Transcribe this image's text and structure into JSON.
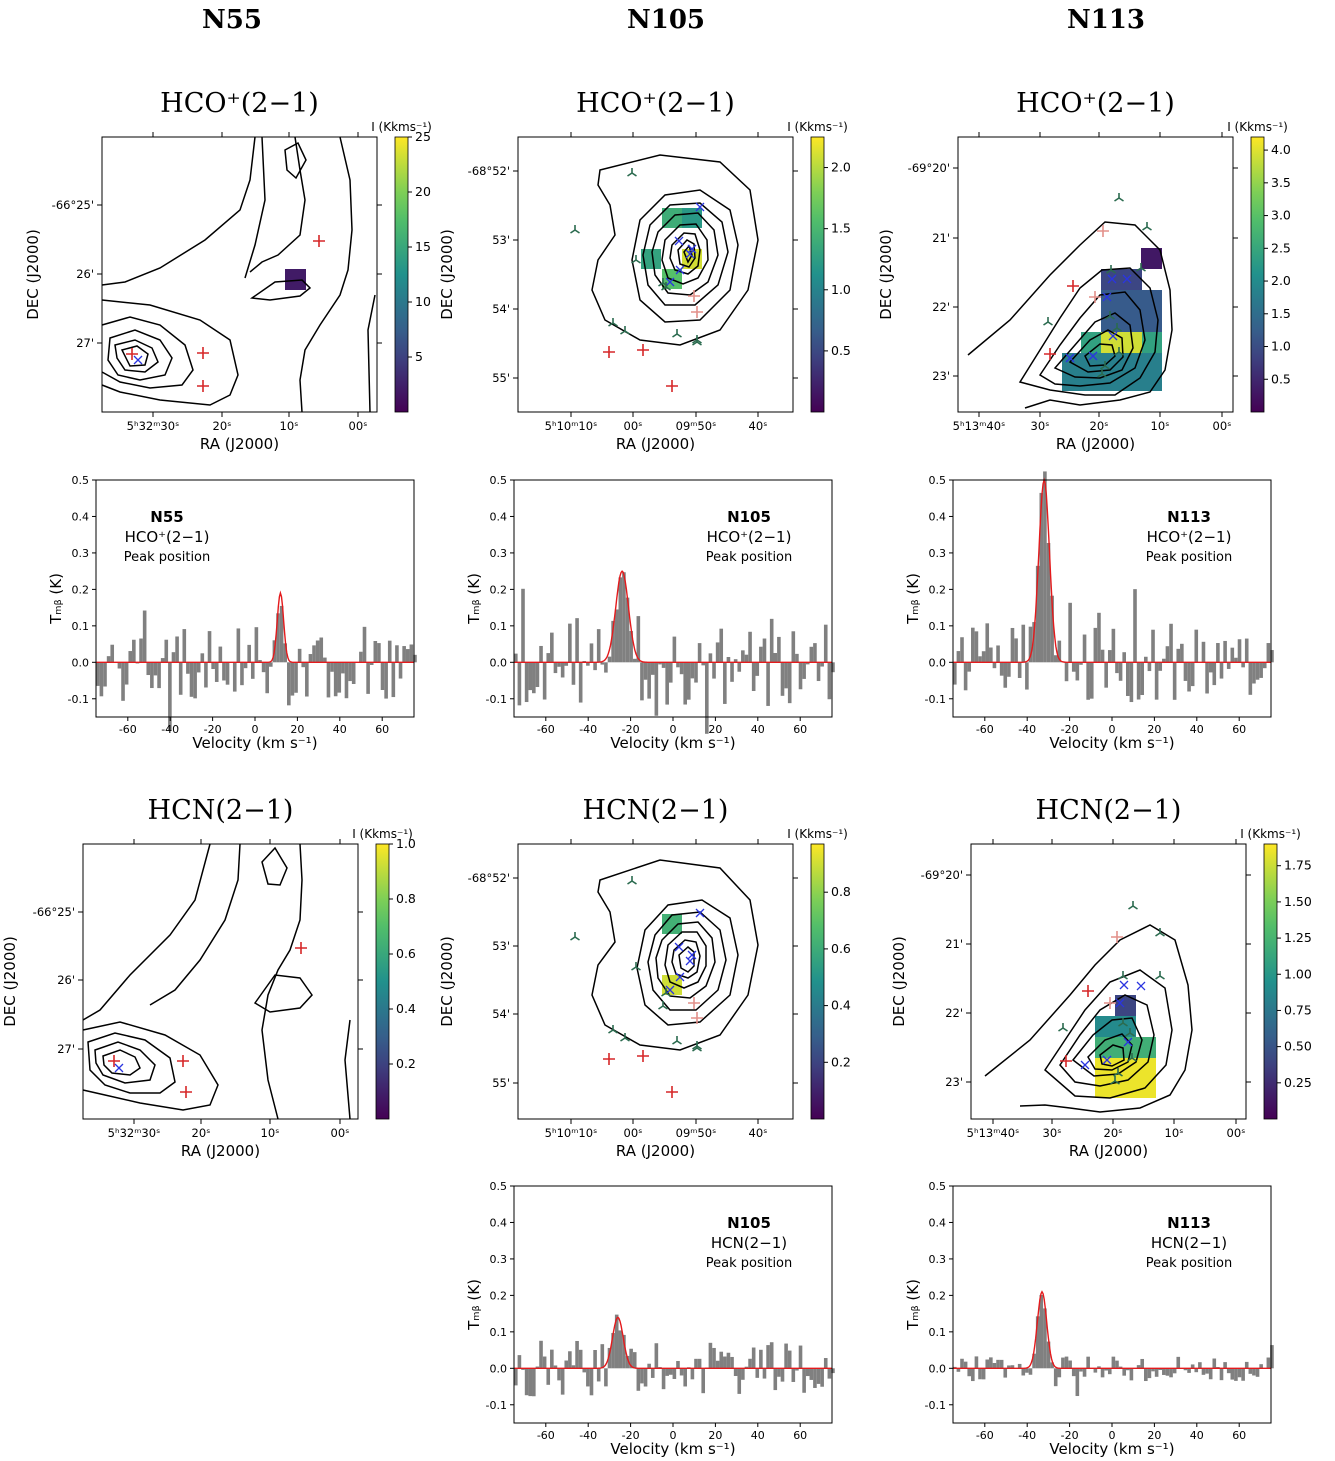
{
  "column_titles": [
    "N55",
    "N105",
    "N113"
  ],
  "chart_data": [
    {
      "id": "n55-hco-map",
      "type": "heatmap",
      "title": "HCO⁺(2−1)",
      "xlabel": "RA (J2000)",
      "ylabel": "DEC (J2000)",
      "xticks": [
        "5ʰ32ᵐ30ˢ",
        "20ˢ",
        "10ˢ",
        "00ˢ"
      ],
      "yticks": [
        "-66°25'",
        "26'",
        "27'"
      ],
      "colorbar": {
        "label": "I (Kkms⁻¹)",
        "ticks": [
          "5",
          "10",
          "15",
          "20",
          "25"
        ],
        "range": [
          0,
          25
        ]
      },
      "pixels": [
        {
          "ra": "5h32m10s",
          "dec": "-66°26'",
          "value": 2
        }
      ],
      "markers": [
        "red +",
        "blue x"
      ]
    },
    {
      "id": "n105-hco-map",
      "type": "heatmap",
      "title": "HCO⁺(2−1)",
      "xlabel": "RA (J2000)",
      "ylabel": "DEC (J2000)",
      "xticks": [
        "5ʰ10ᵐ10ˢ",
        "00ˢ",
        "09ᵐ50ˢ",
        "40ˢ"
      ],
      "yticks": [
        "-68°52'",
        "53'",
        "54'",
        "55'"
      ],
      "colorbar": {
        "label": "I (Kkms⁻¹)",
        "ticks": [
          "0.5",
          "1.0",
          "1.5",
          "2.0"
        ],
        "range": [
          0,
          2.25
        ]
      },
      "pixels": [
        {
          "value": 1.4
        },
        {
          "value": 1.2
        },
        {
          "value": 1.3
        },
        {
          "value": 1.6
        },
        {
          "value": 2.1
        }
      ],
      "markers": [
        "red +",
        "pink +",
        "blue x",
        "green tri"
      ]
    },
    {
      "id": "n113-hco-map",
      "type": "heatmap",
      "title": "HCO⁺(2−1)",
      "xlabel": "RA (J2000)",
      "ylabel": "DEC (J2000)",
      "xticks": [
        "5ʰ13ᵐ40ˢ",
        "30ˢ",
        "20ˢ",
        "10ˢ",
        "00ˢ"
      ],
      "yticks": [
        "-69°20'",
        "21'",
        "22'",
        "23'"
      ],
      "colorbar": {
        "label": "I (Kkms⁻¹)",
        "ticks": [
          "0.5",
          "1.0",
          "1.5",
          "2.0",
          "2.5",
          "3.0",
          "3.5",
          "4.0"
        ],
        "range": [
          0,
          4.2
        ]
      },
      "pixels": [
        {
          "value": 0.3
        },
        {
          "value": 0.9
        },
        {
          "value": 1.2
        },
        {
          "value": 2.4
        },
        {
          "value": 3.9
        },
        {
          "value": 1.8
        }
      ],
      "markers": [
        "red +",
        "pink +",
        "blue x",
        "green tri"
      ]
    },
    {
      "id": "n55-hco-spec",
      "type": "bar",
      "annotation": [
        "N55",
        "HCO⁺(2−1)",
        "Peak position"
      ],
      "xlabel": "Velocity (km s⁻¹)",
      "ylabel": "Tₘᵦ (K)",
      "xlim": [
        -75,
        75
      ],
      "ylim": [
        -0.15,
        0.5
      ],
      "xticks": [
        -60,
        -40,
        -20,
        0,
        20,
        40,
        60
      ],
      "yticks": [
        -0.1,
        0.0,
        0.1,
        0.2,
        0.3,
        0.4,
        0.5
      ],
      "fit": {
        "amplitude": 0.19,
        "center": 12,
        "sigma": 1.5
      }
    },
    {
      "id": "n105-hco-spec",
      "type": "bar",
      "annotation": [
        "N105",
        "HCO⁺(2−1)",
        "Peak position"
      ],
      "xlabel": "Velocity (km s⁻¹)",
      "ylabel": "Tₘᵦ (K)",
      "xlim": [
        -75,
        75
      ],
      "ylim": [
        -0.15,
        0.5
      ],
      "xticks": [
        -60,
        -40,
        -20,
        0,
        20,
        40,
        60
      ],
      "yticks": [
        -0.1,
        0.0,
        0.1,
        0.2,
        0.3,
        0.4,
        0.5
      ],
      "fit": {
        "amplitude": 0.25,
        "center": -24,
        "sigma": 3
      }
    },
    {
      "id": "n113-hco-spec",
      "type": "bar",
      "annotation": [
        "N113",
        "HCO⁺(2−1)",
        "Peak position"
      ],
      "xlabel": "Velocity (km s⁻¹)",
      "ylabel": "Tₘᵦ (K)",
      "xlim": [
        -75,
        75
      ],
      "ylim": [
        -0.15,
        0.5
      ],
      "xticks": [
        -60,
        -40,
        -20,
        0,
        20,
        40,
        60
      ],
      "yticks": [
        -0.1,
        0.0,
        0.1,
        0.2,
        0.3,
        0.4,
        0.5
      ],
      "fit": {
        "amplitude": 0.5,
        "center": -32,
        "sigma": 2.5
      }
    },
    {
      "id": "n55-hcn-map",
      "type": "heatmap",
      "title": "HCN(2−1)",
      "xlabel": "RA (J2000)",
      "ylabel": "DEC (J2000)",
      "xticks": [
        "5ʰ32ᵐ30ˢ",
        "20ˢ",
        "10ˢ",
        "00ˢ"
      ],
      "yticks": [
        "-66°25'",
        "26'",
        "27'"
      ],
      "colorbar": {
        "label": "I (Kkms⁻¹)",
        "ticks": [
          "0.2",
          "0.4",
          "0.6",
          "0.8",
          "1.0"
        ],
        "range": [
          0,
          1.0
        ]
      },
      "pixels": [],
      "markers": [
        "red +",
        "blue x"
      ]
    },
    {
      "id": "n105-hcn-map",
      "type": "heatmap",
      "title": "HCN(2−1)",
      "xlabel": "RA (J2000)",
      "ylabel": "DEC (J2000)",
      "xticks": [
        "5ʰ10ᵐ10ˢ",
        "00ˢ",
        "09ᵐ50ˢ",
        "40ˢ"
      ],
      "yticks": [
        "-68°52'",
        "53'",
        "54'",
        "55'"
      ],
      "colorbar": {
        "label": "I (Kkms⁻¹)",
        "ticks": [
          "0.2",
          "0.4",
          "0.6",
          "0.8"
        ],
        "range": [
          0,
          0.97
        ]
      },
      "pixels": [
        {
          "value": 0.62
        },
        {
          "value": 0.9
        }
      ],
      "markers": [
        "red +",
        "pink +",
        "blue x",
        "green tri"
      ]
    },
    {
      "id": "n113-hcn-map",
      "type": "heatmap",
      "title": "HCN(2−1)",
      "xlabel": "RA (J2000)",
      "ylabel": "DEC (J2000)",
      "xticks": [
        "5ʰ13ᵐ40ˢ",
        "30ˢ",
        "20ˢ",
        "10ˢ",
        "00ˢ"
      ],
      "yticks": [
        "-69°20'",
        "21'",
        "22'",
        "23'"
      ],
      "colorbar": {
        "label": "I (Kkms⁻¹)",
        "ticks": [
          "0.25",
          "0.50",
          "0.75",
          "1.00",
          "1.25",
          "1.50",
          "1.75"
        ],
        "range": [
          0,
          1.9
        ]
      },
      "pixels": [
        {
          "value": 0.4
        },
        {
          "value": 0.9
        },
        {
          "value": 1.2
        },
        {
          "value": 1.6
        },
        {
          "value": 1.85
        }
      ],
      "markers": [
        "red +",
        "pink +",
        "blue x",
        "green tri"
      ]
    },
    {
      "id": "n105-hcn-spec",
      "type": "bar",
      "annotation": [
        "N105",
        "HCN(2−1)",
        "Peak position"
      ],
      "xlabel": "Velocity (km s⁻¹)",
      "ylabel": "Tₘᵦ (K)",
      "xlim": [
        -75,
        75
      ],
      "ylim": [
        -0.15,
        0.5
      ],
      "xticks": [
        -60,
        -40,
        -20,
        0,
        20,
        40,
        60
      ],
      "yticks": [
        -0.1,
        0.0,
        0.1,
        0.2,
        0.3,
        0.4,
        0.5
      ],
      "fit": {
        "amplitude": 0.14,
        "center": -26,
        "sigma": 2.5
      }
    },
    {
      "id": "n113-hcn-spec",
      "type": "bar",
      "annotation": [
        "N113",
        "HCN(2−1)",
        "Peak position"
      ],
      "xlabel": "Velocity (km s⁻¹)",
      "ylabel": "Tₘᵦ (K)",
      "xlim": [
        -75,
        75
      ],
      "ylim": [
        -0.15,
        0.5
      ],
      "xticks": [
        -60,
        -40,
        -20,
        0,
        20,
        40,
        60
      ],
      "yticks": [
        -0.1,
        0.0,
        0.1,
        0.2,
        0.3,
        0.4,
        0.5
      ],
      "fit": {
        "amplitude": 0.21,
        "center": -33,
        "sigma": 2.2
      }
    }
  ]
}
